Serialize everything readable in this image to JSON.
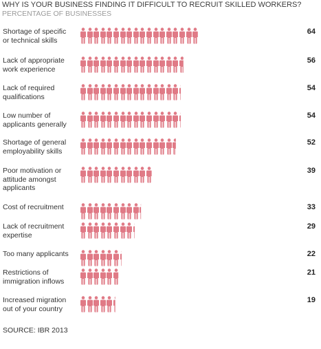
{
  "title": "WHY IS YOUR BUSINESS FINDING IT DIFFICULT TO RECRUIT SKILLED WORKERS?",
  "subtitle": "PERCENTAGE OF BUSINESSES",
  "source": "SOURCE: IBR 2013",
  "colors": {
    "icon": "#e07a86",
    "text": "#333333",
    "subtitle": "#9a9a9a"
  },
  "chart_data": {
    "type": "bar",
    "title": "WHY IS YOUR BUSINESS FINDING IT DIFFICULT TO RECRUIT SKILLED WORKERS?",
    "subtitle": "PERCENTAGE OF BUSINESSES",
    "orientation": "horizontal",
    "mark": "person-icon pictogram",
    "categories": [
      "Shortage of specific\nor technical skills",
      "Lack of appropriate\nwork experience",
      "Lack of required\nqualifications",
      "Low number of\napplicants generally",
      "Shortage of general\nemployability skills",
      "Poor motivation or\nattitude amongst\napplicants",
      "Cost of recruitment",
      "Lack of recruitment\nexpertise",
      "Too many applicants",
      "Restrictions of\nimmigration inflows",
      "Increased migration\nout of your country"
    ],
    "values": [
      64,
      56,
      54,
      54,
      52,
      39,
      33,
      29,
      22,
      21,
      19
    ]
  }
}
